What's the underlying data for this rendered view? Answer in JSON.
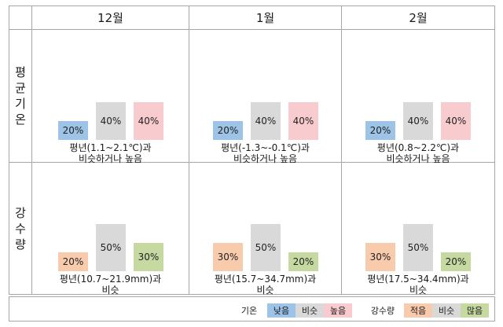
{
  "headers": [
    "12월",
    "1월",
    "2월"
  ],
  "rows": [
    {
      "label_chars": [
        "평",
        "균",
        "기",
        "온"
      ],
      "cells": [
        {
          "bars": [
            {
              "value": 20,
              "text": "20%",
              "color": "#9dc3e6"
            },
            {
              "value": 40,
              "text": "40%",
              "color": "#d9d9d9"
            },
            {
              "value": 40,
              "text": "40%",
              "color": "#f8cbcf"
            }
          ],
          "caption": [
            "평년(1.1~2.1℃)과",
            "비슷하거나 높음"
          ]
        },
        {
          "bars": [
            {
              "value": 20,
              "text": "20%",
              "color": "#9dc3e6"
            },
            {
              "value": 40,
              "text": "40%",
              "color": "#d9d9d9"
            },
            {
              "value": 40,
              "text": "40%",
              "color": "#f8cbcf"
            }
          ],
          "caption": [
            "평년(-1.3~-0.1℃)과",
            "비슷하거나 높음"
          ]
        },
        {
          "bars": [
            {
              "value": 20,
              "text": "20%",
              "color": "#9dc3e6"
            },
            {
              "value": 40,
              "text": "40%",
              "color": "#d9d9d9"
            },
            {
              "value": 40,
              "text": "40%",
              "color": "#f8cbcf"
            }
          ],
          "caption": [
            "평년(0.8~2.2℃)과",
            "비슷하거나 높음"
          ]
        }
      ]
    },
    {
      "label_chars": [
        "강",
        "수",
        "량"
      ],
      "cells": [
        {
          "bars": [
            {
              "value": 20,
              "text": "20%",
              "color": "#f8cbad"
            },
            {
              "value": 50,
              "text": "50%",
              "color": "#d9d9d9"
            },
            {
              "value": 30,
              "text": "30%",
              "color": "#c5d9a0"
            }
          ],
          "caption": [
            "평년(10.7~21.9mm)과",
            "비슷"
          ]
        },
        {
          "bars": [
            {
              "value": 30,
              "text": "30%",
              "color": "#f8cbad"
            },
            {
              "value": 50,
              "text": "50%",
              "color": "#d9d9d9"
            },
            {
              "value": 20,
              "text": "20%",
              "color": "#c5d9a0"
            }
          ],
          "caption": [
            "평년(15.7~34.7mm)과",
            "비슷"
          ]
        },
        {
          "bars": [
            {
              "value": 30,
              "text": "30%",
              "color": "#f8cbad"
            },
            {
              "value": 50,
              "text": "50%",
              "color": "#d9d9d9"
            },
            {
              "value": 20,
              "text": "20%",
              "color": "#c5d9a0"
            }
          ],
          "caption": [
            "평년(17.5~34.4mm)과",
            "비슷"
          ]
        }
      ]
    }
  ],
  "legend": {
    "temp": {
      "label": "기온",
      "items": [
        {
          "text": "낮음",
          "color": "#9dc3e6"
        },
        {
          "text": "비슷",
          "color": "#d9d9d9"
        },
        {
          "text": "높음",
          "color": "#f8cbcf"
        }
      ]
    },
    "precip": {
      "label": "강수량",
      "items": [
        {
          "text": "적음",
          "color": "#f8cbad"
        },
        {
          "text": "비슷",
          "color": "#d9d9d9"
        },
        {
          "text": "많음",
          "color": "#c5d9a0"
        }
      ]
    }
  },
  "chart_data": {
    "type": "bar",
    "categories": [
      "12월",
      "1월",
      "2월"
    ],
    "panels": [
      {
        "row": "평균기온",
        "series": [
          {
            "name": "낮음",
            "values": [
              20,
              20,
              20
            ]
          },
          {
            "name": "비슷",
            "values": [
              40,
              40,
              40
            ]
          },
          {
            "name": "높음",
            "values": [
              40,
              40,
              40
            ]
          }
        ]
      },
      {
        "row": "강수량",
        "series": [
          {
            "name": "적음",
            "values": [
              20,
              30,
              30
            ]
          },
          {
            "name": "비슷",
            "values": [
              50,
              50,
              50
            ]
          },
          {
            "name": "많음",
            "values": [
              30,
              20,
              20
            ]
          }
        ]
      }
    ],
    "unit": "%",
    "ylim": [
      0,
      100
    ]
  }
}
